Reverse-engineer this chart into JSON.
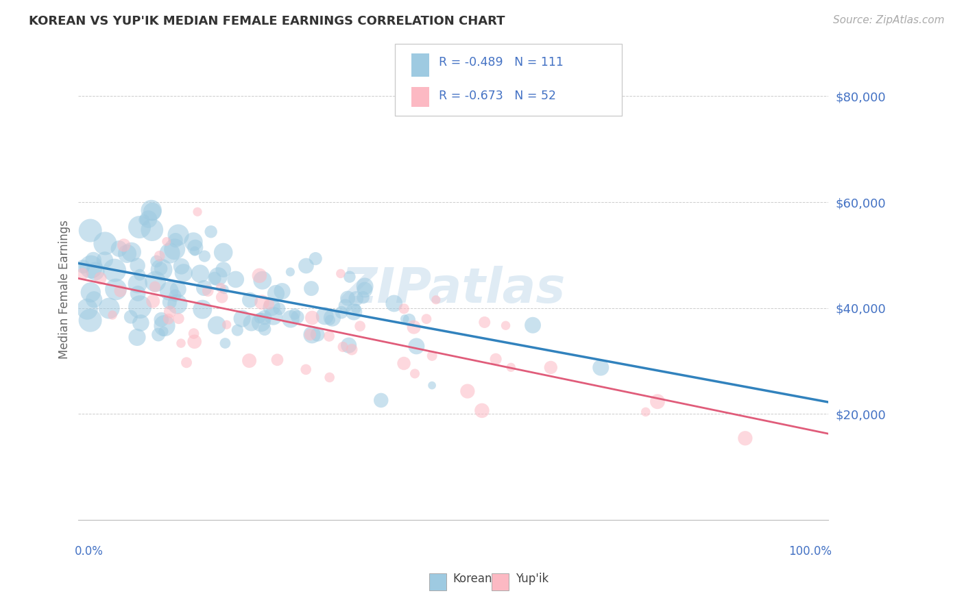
{
  "title": "KOREAN VS YUP'IK MEDIAN FEMALE EARNINGS CORRELATION CHART",
  "source": "Source: ZipAtlas.com",
  "ylabel": "Median Female Earnings",
  "ytick_labels": [
    "$20,000",
    "$40,000",
    "$60,000",
    "$80,000"
  ],
  "ytick_values": [
    20000,
    40000,
    60000,
    80000
  ],
  "ylim": [
    0,
    87000
  ],
  "xlim": [
    0.0,
    1.0
  ],
  "korean_R": -0.489,
  "korean_N": 111,
  "yupik_R": -0.673,
  "yupik_N": 52,
  "korean_color": "#9ecae1",
  "yupik_color": "#fcb9c3",
  "korean_line_color": "#3182bd",
  "yupik_line_color": "#e05c7a",
  "watermark": "ZIPatlas",
  "background_color": "#ffffff",
  "grid_color": "#cccccc",
  "title_color": "#333333",
  "source_color": "#aaaaaa",
  "axis_label_color": "#4472c4",
  "legend_text_color": "#4472c4"
}
